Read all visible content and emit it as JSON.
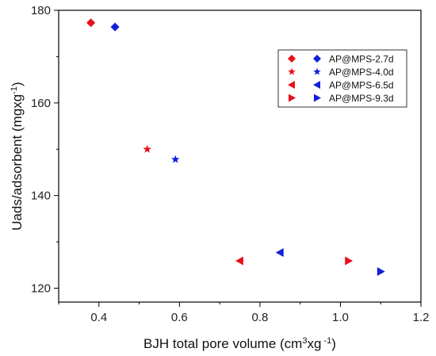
{
  "chart_data": {
    "type": "scatter",
    "title": "",
    "xlabel": {
      "prefix": "BJH total pore volume (cm",
      "sup1": "3",
      "mid": "xg",
      "sup2": " -1",
      "suffix": ")"
    },
    "ylabel": {
      "prefix": "Uads/adsorbent (mgxg",
      "sup": "-1",
      "suffix": ")"
    },
    "xlim": [
      0.3,
      1.2
    ],
    "ylim": [
      117,
      180
    ],
    "xticks": [
      0.4,
      0.6,
      0.8,
      1.0,
      1.2
    ],
    "xtick_labels": [
      "0.4",
      "0.6",
      "0.8",
      "1.0",
      "1.2"
    ],
    "yticks": [
      120,
      140,
      160,
      180
    ],
    "ytick_labels": [
      "120",
      "140",
      "160",
      "180"
    ],
    "grid": false,
    "legend_position": "top-right",
    "colors": {
      "red": "#e8101a",
      "blue": "#1020d8"
    },
    "series": [
      {
        "name": "AP@MPS-2.7d",
        "marker": "diamond",
        "points": [
          {
            "x": 0.38,
            "y": 177.3,
            "color": "red"
          },
          {
            "x": 0.44,
            "y": 176.4,
            "color": "blue"
          }
        ]
      },
      {
        "name": "AP@MPS-4.0d",
        "marker": "star",
        "points": [
          {
            "x": 0.52,
            "y": 150.0,
            "color": "red"
          },
          {
            "x": 0.59,
            "y": 147.8,
            "color": "blue"
          }
        ]
      },
      {
        "name": "AP@MPS-6.5d",
        "marker": "triangle-left",
        "points": [
          {
            "x": 0.75,
            "y": 125.9,
            "color": "red"
          },
          {
            "x": 0.85,
            "y": 127.7,
            "color": "blue"
          }
        ]
      },
      {
        "name": "AP@MPS-9.3d",
        "marker": "triangle-right",
        "points": [
          {
            "x": 1.02,
            "y": 125.9,
            "color": "red"
          },
          {
            "x": 1.1,
            "y": 123.6,
            "color": "blue"
          }
        ]
      }
    ]
  }
}
